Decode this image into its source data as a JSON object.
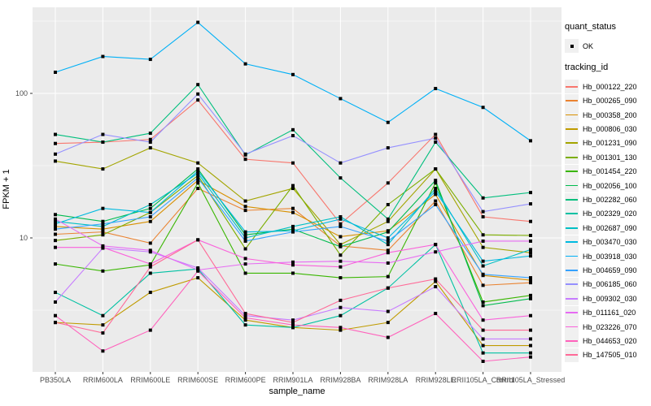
{
  "axes": {
    "x": {
      "label": "sample_name"
    },
    "y": {
      "label": "FPKM + 1",
      "tick_labels": [
        "100",
        "10"
      ],
      "tick_values": [
        100,
        10
      ]
    }
  },
  "legend": {
    "quant_status": {
      "title": "quant_status",
      "items": [
        {
          "label": "OK",
          "symbol": "black-point"
        }
      ]
    },
    "tracking_id": {
      "title": "tracking_id"
    }
  },
  "panel": {
    "background": "#EBEBEB",
    "grid_color": "#FFFFFF",
    "point_color": "#000000",
    "tick_text_color": "#4D4D4D"
  },
  "chart_data": {
    "type": "line",
    "title": "",
    "xlabel": "sample_name",
    "ylabel": "FPKM + 1",
    "yscale": "log10",
    "ylim": [
      1.2,
      390
    ],
    "grid": true,
    "legend_position": "right",
    "point_shape": "black-square",
    "categories": [
      "PB350LA",
      "RRIM600LA",
      "RRIM600LE",
      "RRIM600SE",
      "RRIM600PE",
      "RRIM901LA",
      "RRIM928BA",
      "RRIM928LA",
      "RRIM928LE",
      "RRII105LA_Control",
      "RRII105LA_Stressed"
    ],
    "minor_gridlines": [
      3.162,
      31.62,
      316.2
    ],
    "major_gridlines": [
      10,
      100
    ],
    "series": [
      {
        "name": "Hb_000122_220",
        "color": "#F8766D",
        "values": [
          45,
          46,
          48,
          90,
          35,
          33,
          12.5,
          24,
          52,
          14,
          13
        ]
      },
      {
        "name": "Hb_000265_090",
        "color": "#EA8331",
        "values": [
          10.6,
          11,
          9.2,
          22,
          15.5,
          16,
          8.8,
          8.2,
          18,
          4.7,
          4.9
        ]
      },
      {
        "name": "Hb_000358_200",
        "color": "#D89000",
        "values": [
          12,
          11.5,
          13,
          25,
          16.5,
          15,
          10.2,
          11.2,
          20,
          5.5,
          5.1
        ]
      },
      {
        "name": "Hb_000806_030",
        "color": "#C09B00",
        "values": [
          2.6,
          2.5,
          4.2,
          5.3,
          2.7,
          2.4,
          2.3,
          2.6,
          5.0,
          1.8,
          1.8
        ]
      },
      {
        "name": "Hb_001231_090",
        "color": "#A3A500",
        "values": [
          34,
          30,
          42,
          33,
          18,
          22,
          9.0,
          13,
          30,
          8.6,
          7.9
        ]
      },
      {
        "name": "Hb_001301_130",
        "color": "#7CAE00",
        "values": [
          9.6,
          10.5,
          15,
          27,
          8.4,
          23,
          7.6,
          17,
          30,
          10.5,
          10.4
        ]
      },
      {
        "name": "Hb_001454_220",
        "color": "#39B600",
        "values": [
          6.6,
          5.9,
          6.5,
          24,
          5.7,
          5.7,
          5.3,
          5.4,
          24,
          3.6,
          4.0
        ]
      },
      {
        "name": "Hb_002056_100",
        "color": "#00BB4E",
        "values": [
          14.5,
          13,
          16,
          30,
          10.5,
          11.5,
          8.7,
          11,
          25,
          3.4,
          3.8
        ]
      },
      {
        "name": "Hb_002282_060",
        "color": "#00BF7D",
        "values": [
          52,
          46,
          53,
          115,
          37.5,
          56,
          26,
          13.5,
          46,
          18.9,
          20.6
        ]
      },
      {
        "name": "Hb_002329_020",
        "color": "#00C1A3",
        "values": [
          4.2,
          2.9,
          5.7,
          6.1,
          2.5,
          2.4,
          2.9,
          4.5,
          9.0,
          1.6,
          1.6
        ]
      },
      {
        "name": "Hb_002687_090",
        "color": "#00BFC4",
        "values": [
          13,
          12,
          17,
          28,
          10,
          12,
          14,
          9.0,
          22,
          6.4,
          8.3
        ]
      },
      {
        "name": "Hb_003470_030",
        "color": "#00BAE0",
        "values": [
          12.5,
          16,
          15,
          29,
          11,
          11.2,
          13.5,
          10,
          21,
          6.9,
          7.5
        ]
      },
      {
        "name": "Hb_003918_030",
        "color": "#00B0F6",
        "values": [
          140,
          180,
          172,
          310,
          160,
          135,
          92,
          63,
          108,
          80,
          47
        ]
      },
      {
        "name": "Hb_004659_090",
        "color": "#35A2FF",
        "values": [
          11.5,
          12.5,
          14,
          26,
          9.5,
          11,
          12,
          9.5,
          17,
          5.6,
          5.3
        ]
      },
      {
        "name": "Hb_006185_060",
        "color": "#9590FF",
        "values": [
          38,
          52,
          46,
          99,
          38,
          51,
          33,
          42,
          49,
          15.2,
          17.2
        ]
      },
      {
        "name": "Hb_009302_030",
        "color": "#C77CFF",
        "values": [
          3.6,
          8.5,
          8.0,
          6.2,
          2.9,
          2.7,
          3.3,
          3.1,
          4.6,
          2.0,
          2.0
        ]
      },
      {
        "name": "Hb_011161_020",
        "color": "#E76BF3",
        "values": [
          13.5,
          8.8,
          8.2,
          6.0,
          6.6,
          6.8,
          6.9,
          6.7,
          8.0,
          9.5,
          9.5
        ]
      },
      {
        "name": "Hb_023226_070",
        "color": "#FA62DB",
        "values": [
          8.6,
          8.6,
          6.6,
          9.7,
          7.2,
          6.5,
          6.3,
          7.9,
          9.0,
          2.7,
          2.9
        ]
      },
      {
        "name": "Hb_044653_020",
        "color": "#FF62BC",
        "values": [
          2.9,
          1.65,
          2.3,
          5.9,
          2.8,
          2.5,
          2.4,
          2.05,
          3.0,
          1.4,
          1.5
        ]
      },
      {
        "name": "Hb_147505_010",
        "color": "#FF6A98",
        "values": [
          2.6,
          2.2,
          6.3,
          9.7,
          3.0,
          2.6,
          3.7,
          4.5,
          5.2,
          2.3,
          2.3
        ]
      }
    ]
  }
}
